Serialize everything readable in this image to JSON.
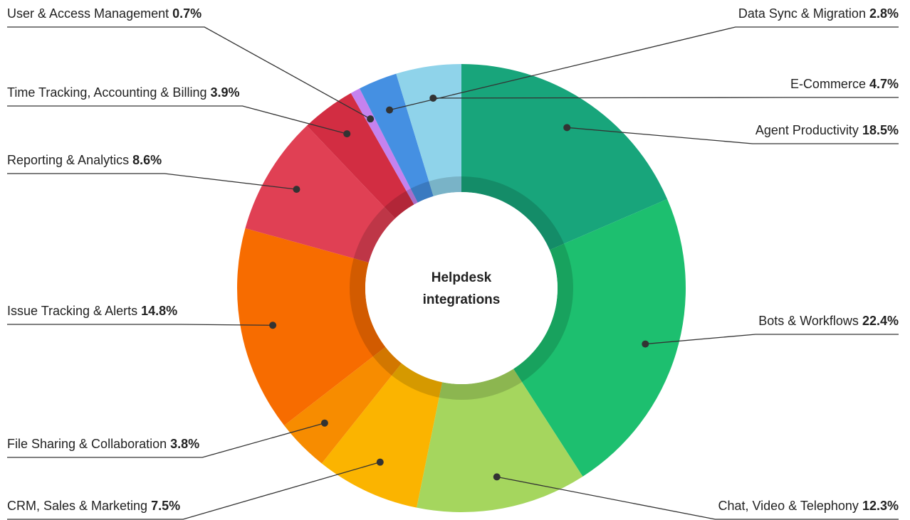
{
  "chart_data": {
    "type": "donut",
    "title": "Helpdesk integrations",
    "categories": [
      "Agent Productivity",
      "Bots & Workflows",
      "Chat, Video & Telephony",
      "CRM, Sales & Marketing",
      "File Sharing & Collaboration",
      "Issue Tracking & Alerts",
      "Reporting & Analytics",
      "Time Tracking, Accounting & Billing",
      "User & Access Management",
      "Data Sync & Migration",
      "E-Commerce"
    ],
    "values": [
      18.5,
      22.4,
      12.3,
      7.5,
      3.8,
      14.8,
      8.6,
      3.9,
      0.7,
      2.8,
      4.7
    ],
    "value_labels": [
      "18.5%",
      "22.4%",
      "12.3%",
      "7.5%",
      "3.8%",
      "14.8%",
      "8.6%",
      "3.9%",
      "0.7%",
      "2.8%",
      "4.7%"
    ],
    "colors": [
      "#18a57b",
      "#1dbf6f",
      "#a5d65e",
      "#fbb400",
      "#f78c00",
      "#f76c00",
      "#e04054",
      "#d22d42",
      "#c582ee",
      "#4590e2",
      "#8fd3ea"
    ]
  }
}
